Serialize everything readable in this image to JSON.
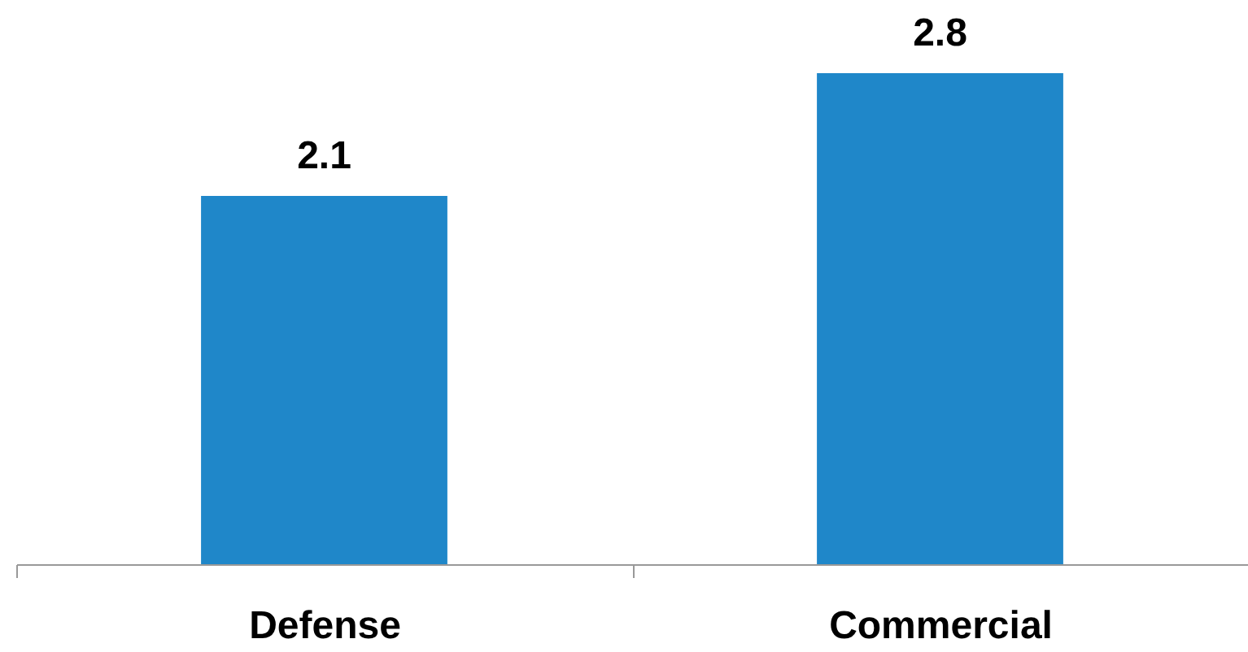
{
  "chart_data": {
    "type": "bar",
    "categories": [
      "Defense",
      "Commercial"
    ],
    "values": [
      2.1,
      2.8
    ],
    "color": "#1f87c9",
    "data_labels": true
  }
}
